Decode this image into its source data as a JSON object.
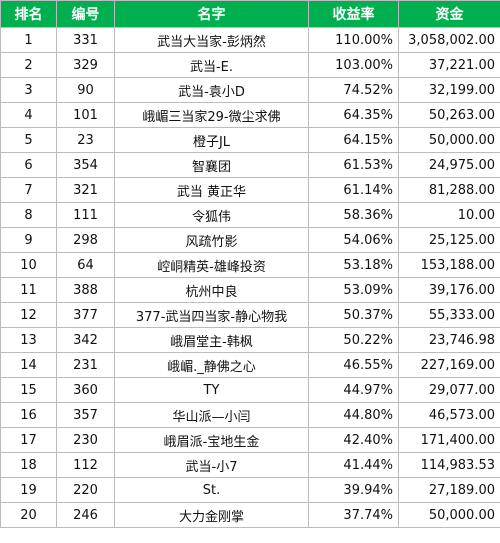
{
  "table": {
    "headers": {
      "rank": "排名",
      "id": "编号",
      "name": "名字",
      "rate": "收益率",
      "fund": "资金"
    },
    "rows": [
      {
        "rank": "1",
        "id": "331",
        "name": "武当大当家-彭炳然",
        "rate": "110.00%",
        "fund": "3,058,002.00"
      },
      {
        "rank": "2",
        "id": "329",
        "name": "武当-E.",
        "rate": "103.00%",
        "fund": "37,221.00"
      },
      {
        "rank": "3",
        "id": "90",
        "name": "武当-袁小D",
        "rate": "74.52%",
        "fund": "32,199.00"
      },
      {
        "rank": "4",
        "id": "101",
        "name": "峨嵋三当家29-微尘求佛",
        "rate": "64.35%",
        "fund": "50,263.00"
      },
      {
        "rank": "5",
        "id": "23",
        "name": "橙子JL",
        "rate": "64.15%",
        "fund": "50,000.00"
      },
      {
        "rank": "6",
        "id": "354",
        "name": "智襄团",
        "rate": "61.53%",
        "fund": "24,975.00"
      },
      {
        "rank": "7",
        "id": "321",
        "name": "武当 黄正华",
        "rate": "61.14%",
        "fund": "81,288.00"
      },
      {
        "rank": "8",
        "id": "111",
        "name": "令狐伟",
        "rate": "58.36%",
        "fund": "10.00"
      },
      {
        "rank": "9",
        "id": "298",
        "name": "风疏竹影",
        "rate": "54.06%",
        "fund": "25,125.00"
      },
      {
        "rank": "10",
        "id": "64",
        "name": "崆峒精英-雄峰投资",
        "rate": "53.18%",
        "fund": "153,188.00"
      },
      {
        "rank": "11",
        "id": "388",
        "name": "杭州中良",
        "rate": "53.09%",
        "fund": "39,176.00"
      },
      {
        "rank": "12",
        "id": "377",
        "name": "377-武当四当家-静心物我",
        "rate": "50.37%",
        "fund": "55,333.00"
      },
      {
        "rank": "13",
        "id": "342",
        "name": "峨眉堂主-韩枫",
        "rate": "50.22%",
        "fund": "23,746.98"
      },
      {
        "rank": "14",
        "id": "231",
        "name": "峨嵋._静佛之心",
        "rate": "46.55%",
        "fund": "227,169.00"
      },
      {
        "rank": "15",
        "id": "360",
        "name": "TY",
        "rate": "44.97%",
        "fund": "29,077.00"
      },
      {
        "rank": "16",
        "id": "357",
        "name": "华山派—小闫",
        "rate": "44.80%",
        "fund": "46,573.00"
      },
      {
        "rank": "17",
        "id": "230",
        "name": "峨眉派-宝地生金",
        "rate": "42.40%",
        "fund": "171,400.00"
      },
      {
        "rank": "18",
        "id": "112",
        "name": "武当-小7",
        "rate": "41.44%",
        "fund": "114,983.53"
      },
      {
        "rank": "19",
        "id": "220",
        "name": "St.",
        "rate": "39.94%",
        "fund": "27,189.00"
      },
      {
        "rank": "20",
        "id": "246",
        "name": "大力金刚掌",
        "rate": "37.74%",
        "fund": "50,000.00"
      }
    ]
  }
}
